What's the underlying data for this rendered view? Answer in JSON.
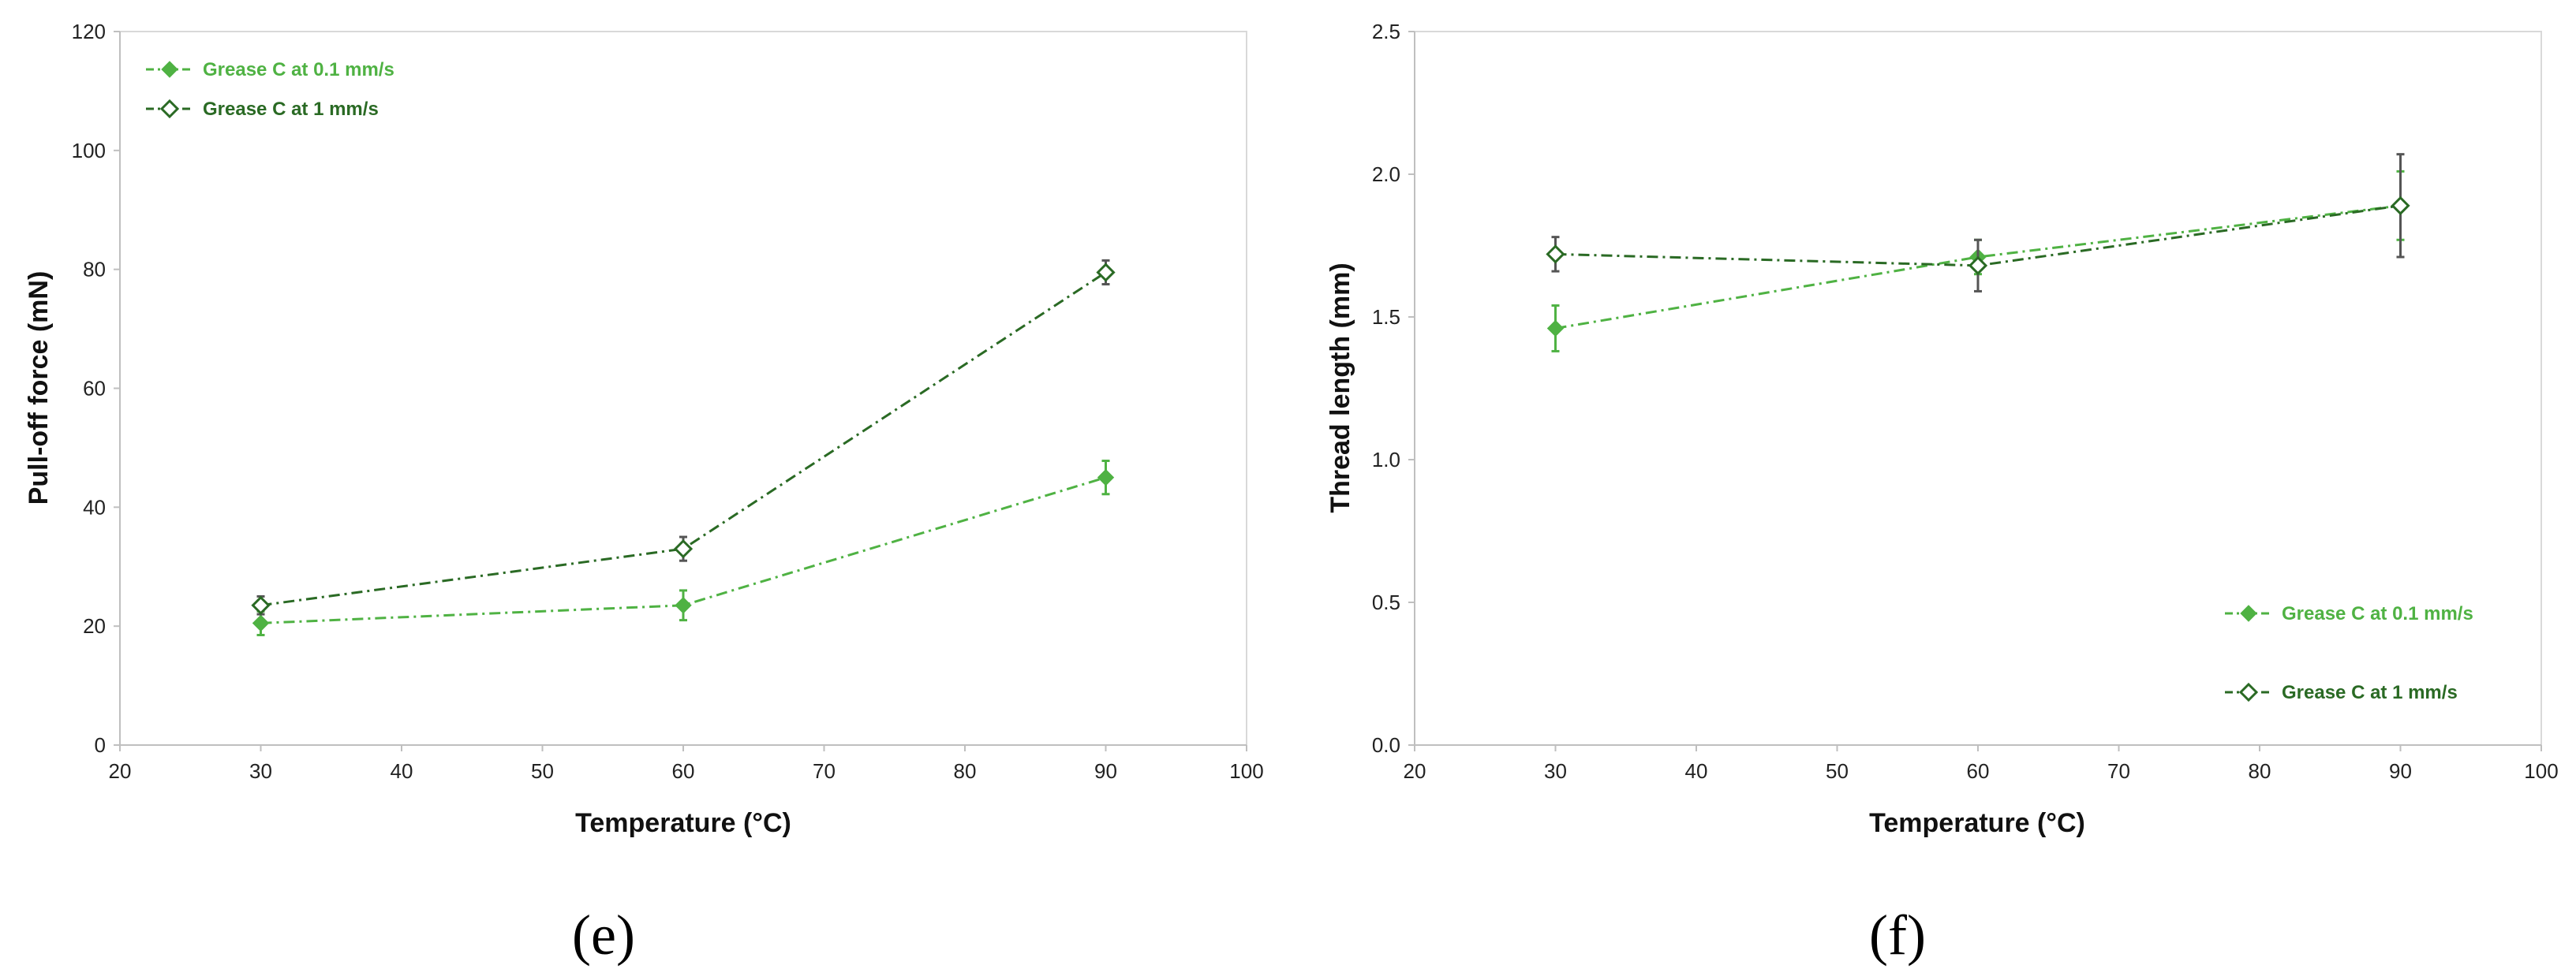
{
  "colors": {
    "light": "#4fb243",
    "dark": "#2a6a24",
    "errbar_dark": "#555555"
  },
  "chart_data": [
    {
      "type": "line",
      "panel_label": "(e)",
      "xlabel": "Temperature (°C)",
      "ylabel": "Pull-off force (mN)",
      "xlim": [
        20,
        100
      ],
      "ylim": [
        0,
        120
      ],
      "xticks": [
        "20",
        "30",
        "40",
        "50",
        "60",
        "70",
        "80",
        "90",
        "100"
      ],
      "yticks": [
        "0",
        "20",
        "40",
        "60",
        "80",
        "100",
        "120"
      ],
      "grid": false,
      "legend_position": "top-left",
      "series": [
        {
          "name": "Grease C at 0.1 mm/s",
          "marker": "filled-diamond",
          "color": "#4fb243",
          "x": [
            30,
            60,
            90
          ],
          "y": [
            20.5,
            23.5,
            45
          ],
          "err": [
            2,
            2.5,
            2.8
          ]
        },
        {
          "name": "Grease C at 1 mm/s",
          "marker": "open-diamond",
          "color": "#2a6a24",
          "x": [
            30,
            60,
            90
          ],
          "y": [
            23.5,
            33,
            79.5
          ],
          "err": [
            1.5,
            2,
            2
          ]
        }
      ]
    },
    {
      "type": "line",
      "panel_label": "(f)",
      "xlabel": "Temperature (°C)",
      "ylabel": "Thread length (mm)",
      "xlim": [
        20,
        100
      ],
      "ylim": [
        0,
        2.5
      ],
      "xticks": [
        "20",
        "30",
        "40",
        "50",
        "60",
        "70",
        "80",
        "90",
        "100"
      ],
      "yticks": [
        "0.0",
        "0.5",
        "1.0",
        "1.5",
        "2.0",
        "2.5"
      ],
      "grid": false,
      "legend_position": "bottom-right",
      "series": [
        {
          "name": "Grease C at 0.1 mm/s",
          "marker": "filled-diamond",
          "color": "#4fb243",
          "x": [
            30,
            60,
            90
          ],
          "y": [
            1.46,
            1.71,
            1.89
          ],
          "err": [
            0.08,
            0.06,
            0.12
          ]
        },
        {
          "name": "Grease C at 1 mm/s",
          "marker": "open-diamond",
          "color": "#2a6a24",
          "x": [
            30,
            60,
            90
          ],
          "y": [
            1.72,
            1.68,
            1.89
          ],
          "err": [
            0.06,
            0.09,
            0.18
          ]
        }
      ]
    }
  ]
}
